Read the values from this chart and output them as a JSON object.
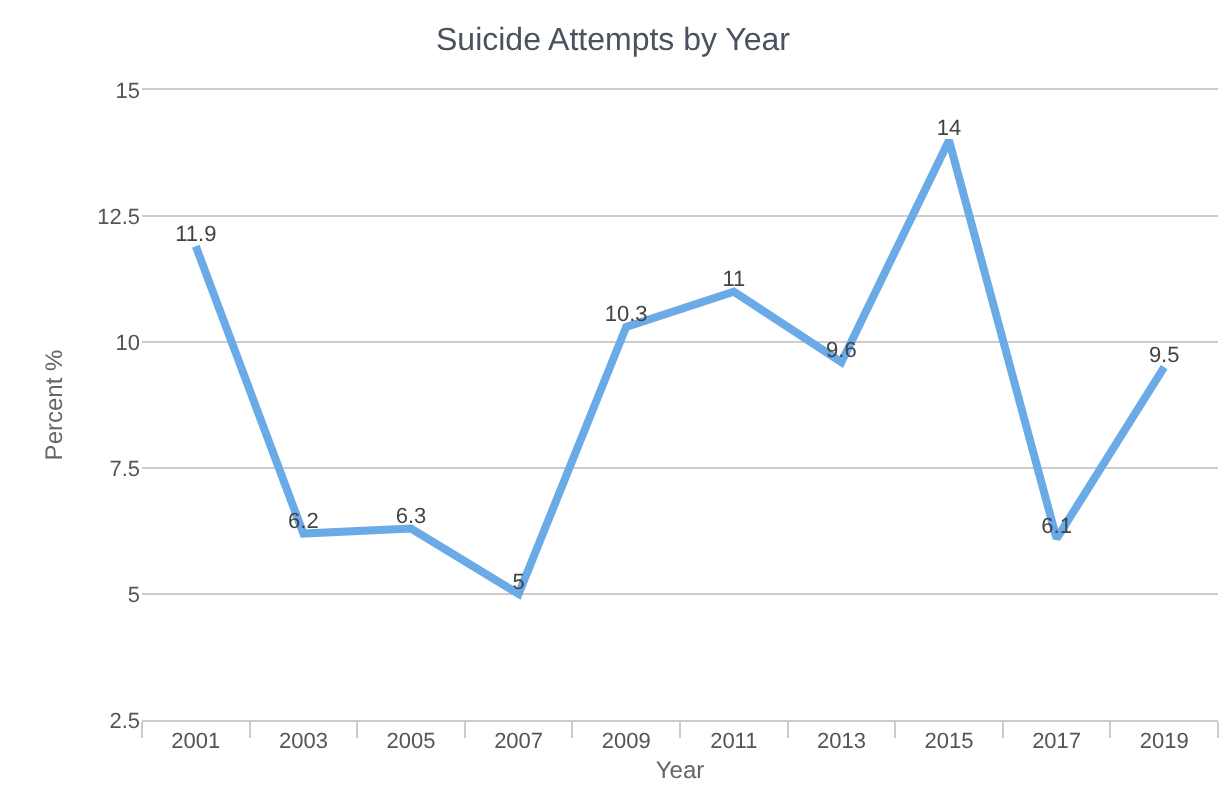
{
  "chart_data": {
    "type": "line",
    "title": "Suicide Attempts by Year",
    "xlabel": "Year",
    "ylabel": "Percent %",
    "categories": [
      "2001",
      "2003",
      "2005",
      "2007",
      "2009",
      "2011",
      "2013",
      "2015",
      "2017",
      "2019"
    ],
    "series": [
      {
        "color": "#6aaae6",
        "values": [
          11.9,
          6.2,
          6.3,
          5,
          10.3,
          11,
          9.6,
          14,
          6.1,
          9.5
        ]
      }
    ],
    "ylim": [
      2.5,
      15
    ],
    "yticks": [
      2.5,
      5,
      7.5,
      10,
      12.5,
      15
    ],
    "grid": "y",
    "data_labels": true,
    "line_style": "solid"
  }
}
